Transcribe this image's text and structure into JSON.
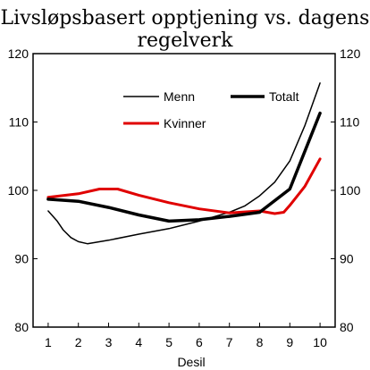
{
  "chart_data": {
    "type": "line",
    "title_line1": "Livsløpsbasert opptjening vs. dagens",
    "title_line2": "regelverk",
    "xlabel": "Desil",
    "ylabel": "",
    "x": [
      1,
      2,
      3,
      4,
      5,
      6,
      7,
      8,
      9,
      10
    ],
    "xlim": [
      0.5,
      10.5
    ],
    "ylim": [
      80,
      120
    ],
    "yticks": [
      80,
      90,
      100,
      110,
      120
    ],
    "secondary_y_axis": true,
    "grid": false,
    "legend_position": "top-right",
    "series": [
      {
        "name": "Menn",
        "color": "#000000",
        "style": "thin",
        "points": [
          [
            1,
            97.0
          ],
          [
            1.3,
            95.5
          ],
          [
            1.5,
            94.2
          ],
          [
            1.75,
            93.1
          ],
          [
            2,
            92.5
          ],
          [
            2.3,
            92.2
          ],
          [
            3,
            92.7
          ],
          [
            4,
            93.6
          ],
          [
            5,
            94.4
          ],
          [
            6,
            95.5
          ],
          [
            7,
            96.8
          ],
          [
            7.5,
            97.7
          ],
          [
            8,
            99.2
          ],
          [
            8.5,
            101.2
          ],
          [
            9,
            104.3
          ],
          [
            9.5,
            109.5
          ],
          [
            10,
            115.7
          ]
        ]
      },
      {
        "name": "Totalt",
        "color": "#000000",
        "style": "thick",
        "points": [
          [
            1,
            98.7
          ],
          [
            2,
            98.4
          ],
          [
            3,
            97.5
          ],
          [
            4,
            96.4
          ],
          [
            5,
            95.5
          ],
          [
            6,
            95.7
          ],
          [
            7,
            96.2
          ],
          [
            8,
            96.8
          ],
          [
            9,
            100.2
          ],
          [
            10,
            111.3
          ]
        ]
      },
      {
        "name": "Kvinner",
        "color": "#e00000",
        "style": "thick",
        "points": [
          [
            1,
            99.0
          ],
          [
            2,
            99.5
          ],
          [
            2.7,
            100.2
          ],
          [
            3.3,
            100.2
          ],
          [
            4,
            99.3
          ],
          [
            5,
            98.2
          ],
          [
            6,
            97.3
          ],
          [
            7,
            96.7
          ],
          [
            8,
            97.0
          ],
          [
            8.5,
            96.6
          ],
          [
            8.8,
            96.8
          ],
          [
            9,
            97.8
          ],
          [
            9.5,
            100.6
          ],
          [
            10,
            104.6
          ]
        ]
      }
    ]
  }
}
